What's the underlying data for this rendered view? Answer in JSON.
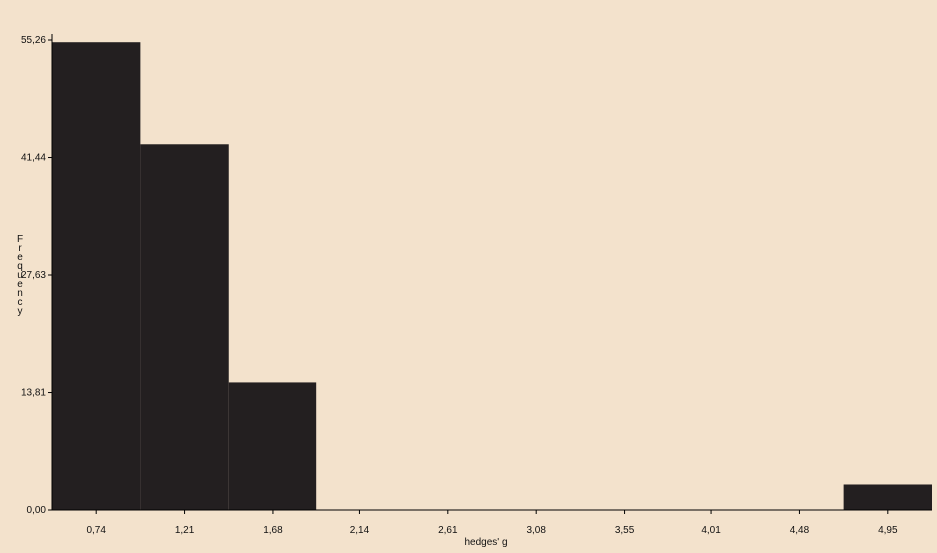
{
  "colors": {
    "background": "#f3e2cc",
    "bar": "#231f20",
    "axis": "#000000",
    "text": "#111111"
  },
  "chart_data": {
    "type": "bar",
    "title": "",
    "xlabel": "hedges' g",
    "ylabel": "Frequency",
    "grid": false,
    "legend": "none",
    "xlim": [
      0.505,
      5.185
    ],
    "ylim": [
      0,
      55.26
    ],
    "x_ticks": [
      0.74,
      1.21,
      1.68,
      2.14,
      2.61,
      3.08,
      3.55,
      4.01,
      4.48,
      4.95
    ],
    "x_tick_labels": [
      "0,74",
      "1,21",
      "1,68",
      "2,14",
      "2,61",
      "3,08",
      "3,55",
      "4,01",
      "4,48",
      "4,95"
    ],
    "y_ticks": [
      0,
      13.81,
      27.63,
      41.44,
      55.26
    ],
    "y_tick_labels": [
      "0,00",
      "13,81",
      "27,63",
      "41,44",
      "55,26"
    ],
    "bins": [
      {
        "x_start": 0.505,
        "x_end": 0.975,
        "value": 55
      },
      {
        "x_start": 0.975,
        "x_end": 1.445,
        "value": 43
      },
      {
        "x_start": 1.445,
        "x_end": 1.91,
        "value": 15
      },
      {
        "x_start": 4.715,
        "x_end": 5.185,
        "value": 3
      }
    ]
  }
}
